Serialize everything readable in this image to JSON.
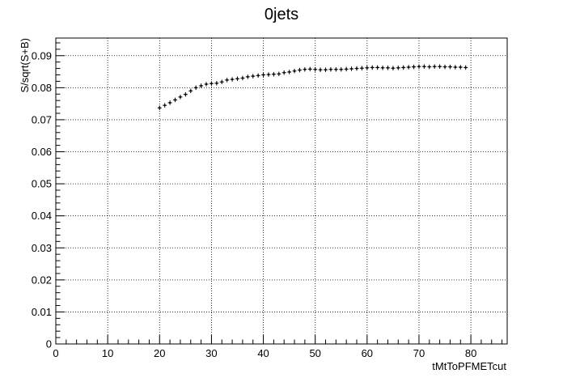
{
  "chart_data": {
    "type": "scatter",
    "title": "0jets",
    "xlabel": "tMtToPFMETcut",
    "ylabel": "S/sqrt(S+B)",
    "xlim": [
      0,
      87
    ],
    "ylim": [
      0,
      0.0955
    ],
    "grid": true,
    "x_ticks": [
      0,
      10,
      20,
      30,
      40,
      50,
      60,
      70,
      80
    ],
    "x_tick_labels": [
      "0",
      "10",
      "20",
      "30",
      "40",
      "50",
      "60",
      "70",
      "80"
    ],
    "y_ticks": [
      0,
      0.01,
      0.02,
      0.03,
      0.04,
      0.05,
      0.06,
      0.07,
      0.08,
      0.09
    ],
    "y_tick_labels": [
      "0",
      "0.01",
      "0.02",
      "0.03",
      "0.04",
      "0.05",
      "0.06",
      "0.07",
      "0.08",
      "0.09"
    ],
    "series": [
      {
        "marker": "point",
        "color": "#000000",
        "x": [
          20,
          21,
          22,
          23,
          24,
          25,
          26,
          27,
          28,
          29,
          30,
          31,
          32,
          33,
          34,
          35,
          36,
          37,
          38,
          39,
          40,
          41,
          42,
          43,
          44,
          45,
          46,
          47,
          48,
          49,
          50,
          51,
          52,
          53,
          54,
          55,
          56,
          57,
          58,
          59,
          60,
          61,
          62,
          63,
          64,
          65,
          66,
          67,
          68,
          69,
          70,
          71,
          72,
          73,
          74,
          75,
          76,
          77,
          78,
          79
        ],
        "y": [
          0.0737,
          0.0745,
          0.0753,
          0.0762,
          0.0771,
          0.0779,
          0.079,
          0.08,
          0.0806,
          0.0811,
          0.0813,
          0.0814,
          0.0818,
          0.0824,
          0.0826,
          0.0828,
          0.083,
          0.0834,
          0.0836,
          0.0838,
          0.084,
          0.0841,
          0.0842,
          0.0843,
          0.0847,
          0.0849,
          0.0852,
          0.0855,
          0.0857,
          0.0858,
          0.0857,
          0.0856,
          0.0856,
          0.0857,
          0.0857,
          0.0857,
          0.0858,
          0.0859,
          0.086,
          0.0861,
          0.0862,
          0.0863,
          0.0863,
          0.0862,
          0.0862,
          0.0861,
          0.0862,
          0.0863,
          0.0864,
          0.0865,
          0.0866,
          0.0866,
          0.0865,
          0.0866,
          0.0866,
          0.0865,
          0.0865,
          0.0864,
          0.0864,
          0.0863
        ],
        "err": [
          0.0007,
          0.0007,
          0.0007,
          0.0007,
          0.0007,
          0.0007,
          0.0007,
          0.0007,
          0.0007,
          0.0007,
          0.0007,
          0.0007,
          0.0007,
          0.0007,
          0.0007,
          0.0007,
          0.0007,
          0.0007,
          0.0007,
          0.0007,
          0.0007,
          0.0007,
          0.0007,
          0.0007,
          0.0007,
          0.0007,
          0.0007,
          0.0007,
          0.0007,
          0.0007,
          0.0007,
          0.0007,
          0.0007,
          0.0007,
          0.0007,
          0.0007,
          0.0007,
          0.0007,
          0.0007,
          0.0007,
          0.0007,
          0.0007,
          0.0007,
          0.0007,
          0.0007,
          0.0007,
          0.0007,
          0.0007,
          0.0007,
          0.0007,
          0.0007,
          0.0007,
          0.0007,
          0.0007,
          0.0007,
          0.0007,
          0.0007,
          0.0007,
          0.0007,
          0.0007
        ]
      }
    ]
  }
}
